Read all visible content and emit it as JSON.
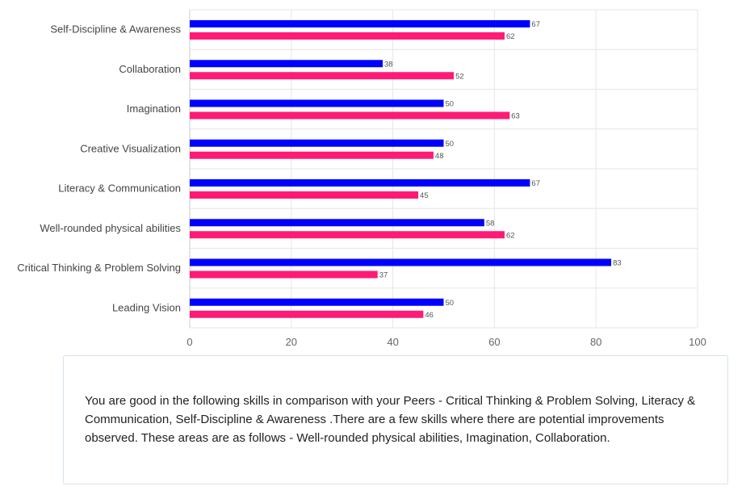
{
  "chart_data": {
    "type": "bar",
    "orientation": "horizontal",
    "categories": [
      "Self-Discipline & Awareness",
      "Collaboration",
      "Imagination",
      "Creative Visualization",
      "Literacy & Communication",
      "Well-rounded physical abilities",
      "Critical Thinking & Problem Solving",
      "Leading Vision"
    ],
    "series": [
      {
        "values": [
          67,
          38,
          50,
          50,
          67,
          58,
          83,
          50
        ],
        "color": "#0000ff"
      },
      {
        "values": [
          62,
          52,
          63,
          48,
          45,
          62,
          37,
          46
        ],
        "color": "#ff1a75"
      }
    ],
    "xlim": [
      0,
      100
    ],
    "x_ticks": [
      "0",
      "20",
      "40",
      "60",
      "80",
      "100"
    ],
    "grid": true,
    "data_labels": true
  },
  "summary": {
    "text": "You are good in the following skills in comparison with your Peers - Critical Thinking & Problem Solving, Literacy & Communication, Self-Discipline & Awareness .There are a few skills where there are potential improvements observed. These areas are as follows - Well-rounded physical abilities, Imagination, Collaboration."
  }
}
